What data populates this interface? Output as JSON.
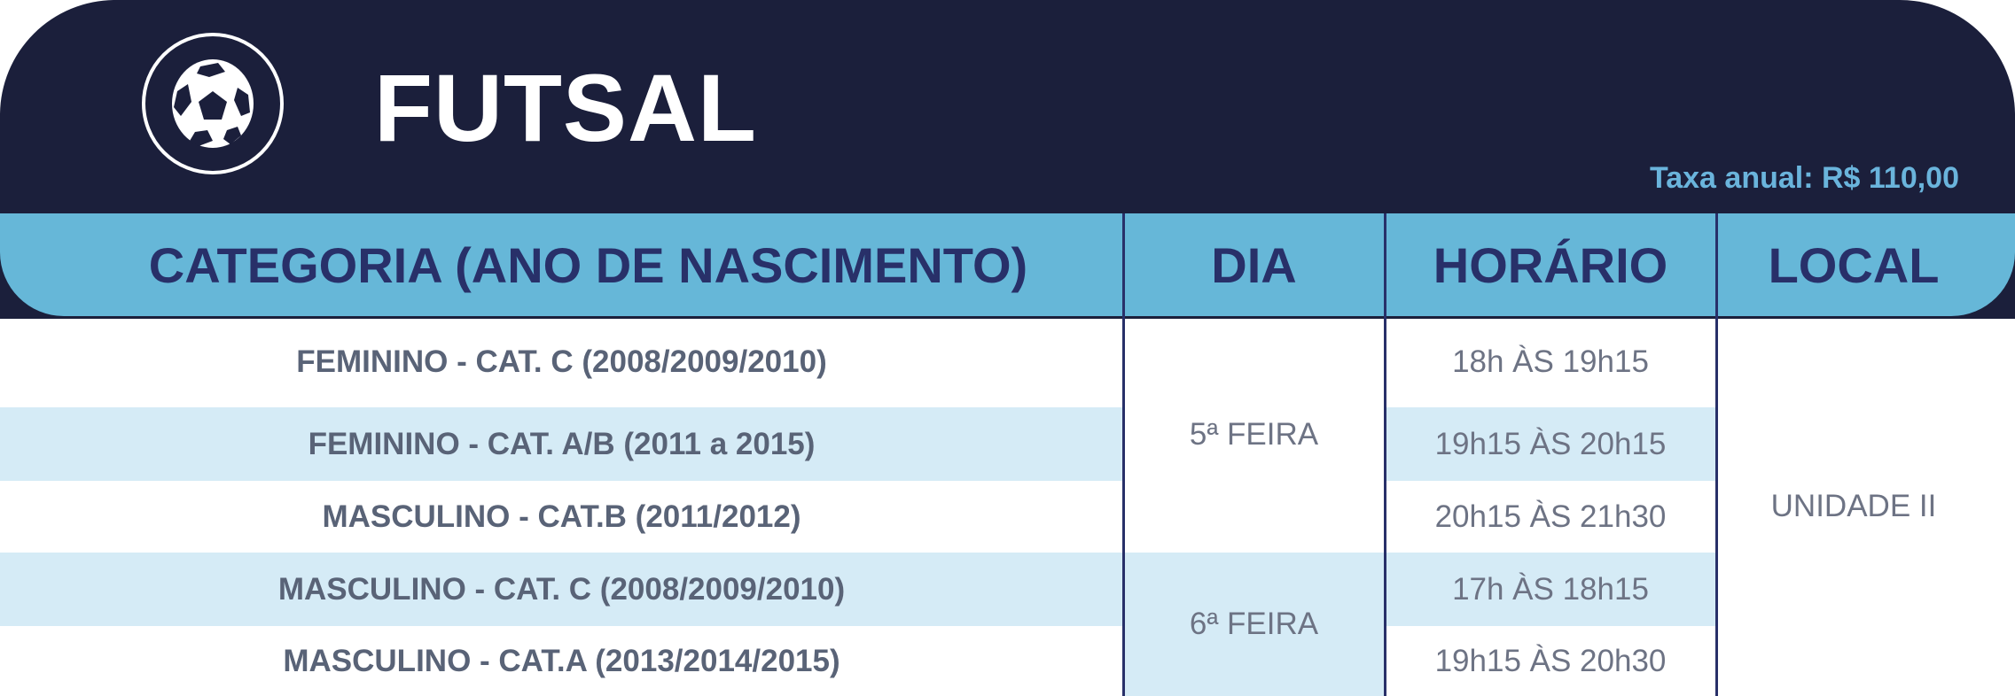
{
  "header": {
    "icon": "soccer-ball-icon",
    "title": "FUTSAL",
    "fee": "Taxa anual: R$ 110,00"
  },
  "colors": {
    "navy": "#1b1f3b",
    "header_blue": "#66b7d8",
    "row_shade": "#d5ebf6",
    "accent": "#6ab4dc"
  },
  "table": {
    "columns": [
      "CATEGORIA (ANO DE NASCIMENTO)",
      "DIA",
      "HORÁRIO",
      "LOCAL"
    ],
    "rows": [
      {
        "categoria": "FEMININO - CAT. C (2008/2009/2010)",
        "horario": "18h ÀS 19h15"
      },
      {
        "categoria": "FEMININO - CAT. A/B (2011 a 2015)",
        "horario": "19h15 ÀS 20h15"
      },
      {
        "categoria": "MASCULINO - CAT.B (2011/2012)",
        "horario": "20h15 ÀS 21h30"
      },
      {
        "categoria": "MASCULINO - CAT. C (2008/2009/2010)",
        "horario": "17h ÀS 18h15"
      },
      {
        "categoria": "MASCULINO - CAT.A (2013/2014/2015)",
        "horario": "19h15 ÀS 20h30"
      }
    ],
    "days": [
      "5ª FEIRA",
      "6ª FEIRA"
    ],
    "local": "UNIDADE II"
  }
}
